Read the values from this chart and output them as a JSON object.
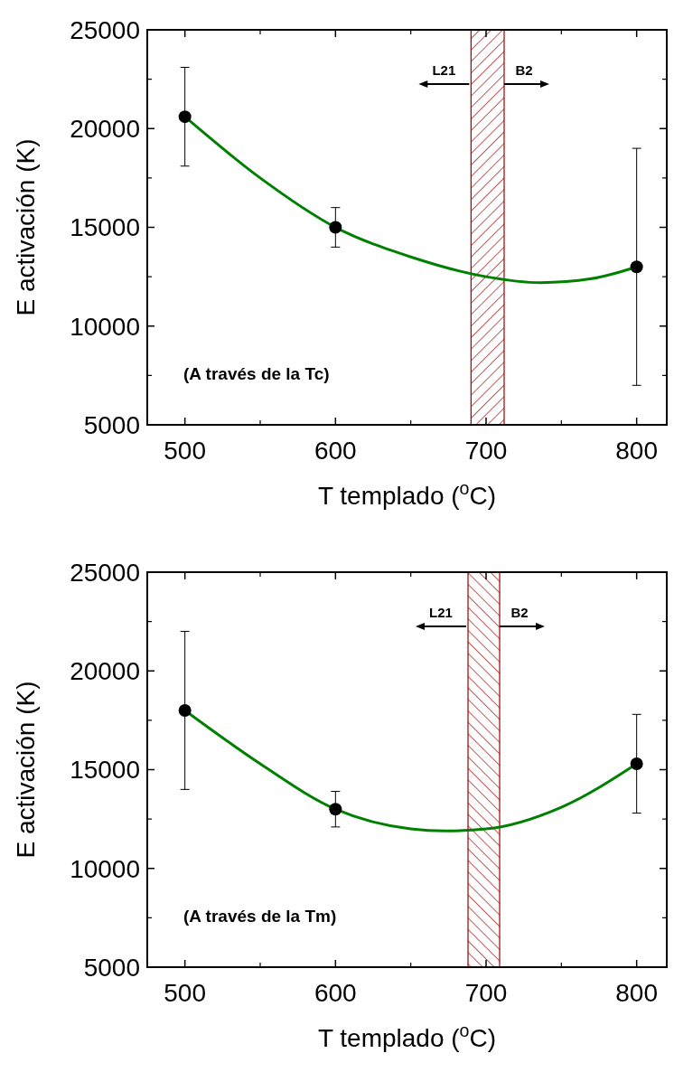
{
  "chart_data": [
    {
      "type": "scatter",
      "xlabel": "T templado ($^{o}$C)",
      "ylabel": "E activación (K)",
      "xlim": [
        475,
        820
      ],
      "xticks": [
        500,
        600,
        700,
        800
      ],
      "ylim": [
        5000,
        25000
      ],
      "yticks": [
        5000,
        10000,
        15000,
        20000,
        25000
      ],
      "series": [
        {
          "color": "#000000",
          "marker": "circle",
          "x": [
            500,
            600,
            800
          ],
          "values": [
            20600,
            15000,
            13000
          ],
          "errors": [
            [
              18100,
              23100
            ],
            [
              14000,
              16000
            ],
            [
              7000,
              19000
            ]
          ]
        },
        {
          "type": "line",
          "color": "#008000",
          "marker": "none",
          "x": [
            500,
            550,
            600,
            650,
            700,
            736,
            770,
            800
          ],
          "values": [
            20600,
            17500,
            15000,
            13500,
            12500,
            12200,
            12400,
            13000
          ]
        }
      ],
      "bands": [
        {
          "axis": "x",
          "from": 690,
          "to": 712,
          "color": "#990000"
        }
      ],
      "annotations": [
        "L21",
        "B2",
        "(A través de la Tc)"
      ]
    },
    {
      "type": "scatter",
      "xlabel": "T templado ($^{o}$C)",
      "ylabel": "E activación (K)",
      "xlim": [
        475,
        820
      ],
      "xticks": [
        500,
        600,
        700,
        800
      ],
      "ylim": [
        5000,
        25000
      ],
      "yticks": [
        5000,
        10000,
        15000,
        20000,
        25000
      ],
      "series": [
        {
          "color": "#000000",
          "marker": "circle",
          "x": [
            500,
            600,
            800
          ],
          "values": [
            18000,
            13000,
            15300
          ],
          "errors": [
            [
              14000,
              22000
            ],
            [
              12100,
              13900
            ],
            [
              12800,
              17800
            ]
          ]
        },
        {
          "type": "line",
          "color": "#008000",
          "marker": "none",
          "x": [
            500,
            550,
            600,
            650,
            673,
            700,
            750,
            800
          ],
          "values": [
            18000,
            15300,
            13000,
            12000,
            11900,
            12000,
            13100,
            15300
          ]
        }
      ],
      "bands": [
        {
          "axis": "x",
          "from": 688,
          "to": 709,
          "color": "#990000"
        }
      ],
      "annotations": [
        "L21",
        "B2",
        "(A través de la Tm)"
      ]
    }
  ]
}
